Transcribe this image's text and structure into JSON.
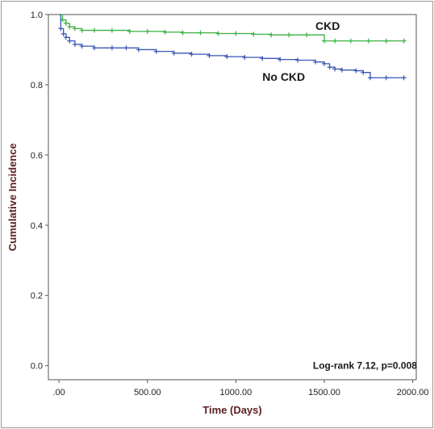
{
  "chart_data": {
    "type": "line",
    "title": "",
    "xlabel": "Time (Days)",
    "ylabel": "Cumulative Incidence",
    "xlim": [
      -60,
      2020
    ],
    "ylim": [
      -0.04,
      1.0
    ],
    "x_ticks": [
      0,
      500,
      1000,
      1500,
      2000
    ],
    "x_tick_labels": [
      ".00",
      "500.00",
      "1000.00",
      "1500.00",
      "2000.00"
    ],
    "y_ticks": [
      0.0,
      0.2,
      0.4,
      0.6,
      0.8,
      1.0
    ],
    "y_tick_labels": [
      "0.0",
      "0.2",
      "0.4",
      "0.6",
      "0.8",
      "1.0"
    ],
    "grid": false,
    "series": [
      {
        "name": "CKD",
        "color": "#3cb043",
        "x": [
          0,
          20,
          40,
          60,
          90,
          130,
          200,
          300,
          400,
          500,
          600,
          700,
          800,
          900,
          1000,
          1100,
          1200,
          1300,
          1400,
          1500,
          1560,
          1650,
          1750,
          1850,
          1950
        ],
        "y": [
          1.0,
          0.985,
          0.975,
          0.965,
          0.96,
          0.955,
          0.955,
          0.955,
          0.952,
          0.952,
          0.95,
          0.948,
          0.948,
          0.946,
          0.946,
          0.944,
          0.942,
          0.942,
          0.942,
          0.925,
          0.925,
          0.925,
          0.925,
          0.925,
          0.925
        ]
      },
      {
        "name": "No CKD",
        "color": "#3a57b5",
        "x": [
          0,
          10,
          25,
          40,
          60,
          90,
          130,
          200,
          300,
          380,
          450,
          550,
          650,
          750,
          850,
          950,
          1050,
          1150,
          1250,
          1350,
          1450,
          1500,
          1530,
          1560,
          1600,
          1680,
          1720,
          1760,
          1850,
          1950
        ],
        "y": [
          1.0,
          0.96,
          0.945,
          0.935,
          0.925,
          0.915,
          0.91,
          0.905,
          0.905,
          0.905,
          0.9,
          0.895,
          0.89,
          0.887,
          0.883,
          0.88,
          0.878,
          0.875,
          0.872,
          0.87,
          0.865,
          0.86,
          0.85,
          0.845,
          0.842,
          0.84,
          0.835,
          0.82,
          0.82,
          0.82
        ]
      }
    ],
    "annotations": [
      {
        "text": "CKD",
        "x": 1450,
        "y": 0.965
      },
      {
        "text": "No CKD",
        "x": 1150,
        "y": 0.82
      },
      {
        "text": "Log-rank 7.12, p=0.008",
        "x": 1730,
        "y": 0.0
      }
    ]
  }
}
